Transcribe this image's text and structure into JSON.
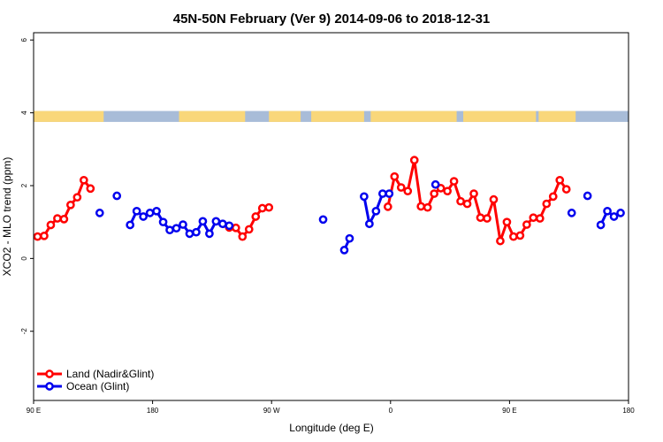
{
  "chart_data": {
    "type": "line",
    "title": "45N-50N February (Ver 9)   2014-09-06 to 2018-12-31",
    "xlabel": "Longitude (deg E)",
    "ylabel": "XCO2 - MLO trend (ppm)",
    "xlim": [
      90,
      540
    ],
    "ylim": [
      -3.9,
      6.2
    ],
    "x_ticks": [
      {
        "value": 90,
        "label": "90 E"
      },
      {
        "value": 180,
        "label": "180"
      },
      {
        "value": 270,
        "label": "90 W"
      },
      {
        "value": 360,
        "label": "0"
      },
      {
        "value": 450,
        "label": "90 E"
      },
      {
        "value": 540,
        "label": "180"
      }
    ],
    "y_ticks": [
      {
        "value": -2,
        "label": "-2"
      },
      {
        "value": 0,
        "label": "0"
      },
      {
        "value": 2,
        "label": "2"
      },
      {
        "value": 4,
        "label": "4"
      },
      {
        "value": 6,
        "label": "6"
      }
    ],
    "legend": {
      "position": "bottom-left",
      "entries": [
        {
          "label": "Land (Nadir&Glint)",
          "color": "#ff0000"
        },
        {
          "label": "Ocean (Glint)",
          "color": "#0000ee"
        }
      ]
    },
    "surface_band": {
      "y_range": [
        3.75,
        4.05
      ],
      "land_color": "#f9d77a",
      "ocean_color": "#a8bcd8",
      "land_segments": [
        [
          90,
          143
        ],
        [
          200,
          250
        ],
        [
          268,
          292
        ],
        [
          300,
          340
        ],
        [
          345,
          410
        ],
        [
          415,
          470
        ],
        [
          472,
          500
        ]
      ]
    },
    "series": [
      {
        "name": "Land (Nadir&Glint)",
        "color": "#ff0000",
        "segments": [
          {
            "x": [
              93,
              98,
              103,
              108,
              113,
              118,
              123,
              128,
              133
            ],
            "y": [
              0.6,
              0.62,
              0.92,
              1.1,
              1.08,
              1.47,
              1.68,
              2.15,
              1.92
            ]
          },
          {
            "x": [
              238,
              243,
              248,
              253,
              258,
              263,
              268
            ],
            "y": [
              0.85,
              0.84,
              0.6,
              0.8,
              1.15,
              1.38,
              1.4
            ]
          },
          {
            "x": [
              358,
              363,
              368,
              373,
              378,
              383,
              388,
              393,
              398,
              403,
              408,
              413,
              418,
              423,
              428,
              433,
              438,
              443,
              448,
              453,
              458,
              463,
              468,
              473,
              478,
              483,
              488,
              493
            ],
            "y": [
              1.42,
              2.25,
              1.95,
              1.85,
              2.7,
              1.43,
              1.4,
              1.78,
              1.93,
              1.85,
              2.12,
              1.57,
              1.5,
              1.78,
              1.12,
              1.1,
              1.62,
              0.48,
              1.0,
              0.6,
              0.63,
              0.93,
              1.12,
              1.1,
              1.5,
              1.7,
              2.15,
              1.9
            ]
          }
        ]
      },
      {
        "name": "Ocean (Glint)",
        "color": "#0000ee",
        "segments": [
          {
            "x": [
              140
            ],
            "y": [
              1.25
            ]
          },
          {
            "x": [
              153
            ],
            "y": [
              1.72
            ]
          },
          {
            "x": [
              163,
              168,
              173,
              178,
              183,
              188,
              193,
              198,
              203,
              208,
              213,
              218,
              223,
              228,
              233,
              238
            ],
            "y": [
              0.92,
              1.3,
              1.15,
              1.25,
              1.3,
              1.0,
              0.78,
              0.83,
              0.93,
              0.68,
              0.72,
              1.02,
              0.68,
              1.02,
              0.95,
              0.9
            ]
          },
          {
            "x": [
              309
            ],
            "y": [
              1.07
            ]
          },
          {
            "x": [
              325,
              329
            ],
            "y": [
              0.23,
              0.55
            ]
          },
          {
            "x": [
              340,
              344,
              349,
              354,
              359
            ],
            "y": [
              1.7,
              0.95,
              1.3,
              1.78,
              1.78
            ]
          },
          {
            "x": [
              394
            ],
            "y": [
              2.03
            ]
          },
          {
            "x": [
              497
            ],
            "y": [
              1.25
            ]
          },
          {
            "x": [
              509
            ],
            "y": [
              1.72
            ]
          },
          {
            "x": [
              519,
              524,
              529,
              534
            ],
            "y": [
              0.92,
              1.3,
              1.15,
              1.25
            ]
          }
        ]
      }
    ]
  }
}
